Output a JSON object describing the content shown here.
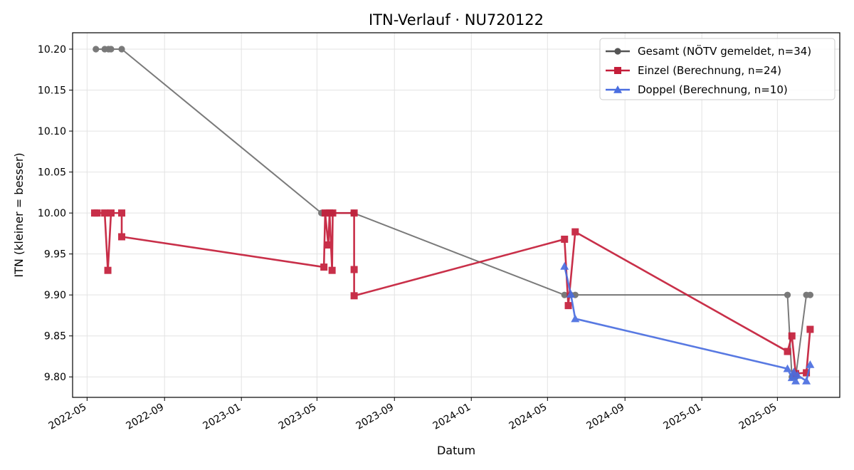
{
  "chart_data": {
    "type": "line",
    "title": "ITN-Verlauf · NU720122",
    "xlabel": "Datum",
    "ylabel": "ITN  (kleiner = besser)",
    "xlim": [
      "2022-04-08",
      "2025-08-08"
    ],
    "ylim": [
      9.775,
      10.22
    ],
    "x_ticks": [
      "2022-05-01",
      "2022-09-01",
      "2023-01-01",
      "2023-05-01",
      "2023-09-01",
      "2024-01-01",
      "2024-05-01",
      "2024-09-01",
      "2025-01-01",
      "2025-05-01"
    ],
    "x_tick_labels": [
      "2022-05",
      "2022-09",
      "2023-01",
      "2023-05",
      "2023-09",
      "2024-01",
      "2024-05",
      "2024-09",
      "2025-01",
      "2025-05"
    ],
    "y_ticks": [
      9.8,
      9.85,
      9.9,
      9.95,
      10.0,
      10.05,
      10.1,
      10.15,
      10.2
    ],
    "y_tick_labels": [
      "9.80",
      "9.85",
      "9.90",
      "9.95",
      "10.00",
      "10.05",
      "10.10",
      "10.15",
      "10.20"
    ],
    "grid": true,
    "legend_position": "top-right",
    "series": [
      {
        "name": "Gesamt (NÖTV gemeldet, n=34)",
        "color": "#555555",
        "marker": "circle",
        "points": [
          {
            "x": "2022-05-15",
            "y": 10.2
          },
          {
            "x": "2022-05-29",
            "y": 10.2
          },
          {
            "x": "2022-06-04",
            "y": 10.2
          },
          {
            "x": "2022-06-08",
            "y": 10.2
          },
          {
            "x": "2022-06-25",
            "y": 10.2
          },
          {
            "x": "2023-05-08",
            "y": 10.0
          },
          {
            "x": "2023-05-14",
            "y": 10.0
          },
          {
            "x": "2023-05-20",
            "y": 10.0
          },
          {
            "x": "2023-05-25",
            "y": 10.0
          },
          {
            "x": "2023-06-28",
            "y": 10.0
          },
          {
            "x": "2024-05-28",
            "y": 9.9
          },
          {
            "x": "2024-06-07",
            "y": 9.9
          },
          {
            "x": "2024-06-14",
            "y": 9.9
          },
          {
            "x": "2025-05-17",
            "y": 9.9
          },
          {
            "x": "2025-05-24",
            "y": 9.8
          },
          {
            "x": "2025-05-30",
            "y": 9.8
          },
          {
            "x": "2025-06-16",
            "y": 9.9
          },
          {
            "x": "2025-06-22",
            "y": 9.9
          }
        ]
      },
      {
        "name": "Einzel (Berechnung, n=24)",
        "color": "#c41e3a",
        "marker": "square",
        "points": [
          {
            "x": "2022-05-13",
            "y": 10.0
          },
          {
            "x": "2022-05-17",
            "y": 10.0
          },
          {
            "x": "2022-05-29",
            "y": 10.0
          },
          {
            "x": "2022-06-03",
            "y": 9.93
          },
          {
            "x": "2022-06-08",
            "y": 10.0
          },
          {
            "x": "2022-06-25",
            "y": 10.0
          },
          {
            "x": "2022-06-25",
            "y": 9.971
          },
          {
            "x": "2023-05-12",
            "y": 9.934
          },
          {
            "x": "2023-05-14",
            "y": 10.0
          },
          {
            "x": "2023-05-19",
            "y": 9.961
          },
          {
            "x": "2023-05-21",
            "y": 10.0
          },
          {
            "x": "2023-05-25",
            "y": 9.93
          },
          {
            "x": "2023-05-26",
            "y": 10.0
          },
          {
            "x": "2023-06-29",
            "y": 10.0
          },
          {
            "x": "2023-06-29",
            "y": 9.931
          },
          {
            "x": "2023-06-29",
            "y": 9.899
          },
          {
            "x": "2024-05-28",
            "y": 9.968
          },
          {
            "x": "2024-06-03",
            "y": 9.887
          },
          {
            "x": "2024-06-14",
            "y": 9.977
          },
          {
            "x": "2025-05-17",
            "y": 9.831
          },
          {
            "x": "2025-05-24",
            "y": 9.85
          },
          {
            "x": "2025-05-30",
            "y": 9.804
          },
          {
            "x": "2025-06-16",
            "y": 9.805
          },
          {
            "x": "2025-06-22",
            "y": 9.858
          }
        ]
      },
      {
        "name": "Doppel (Berechnung, n=10)",
        "color": "#4a6ee0",
        "marker": "triangle",
        "points": [
          {
            "x": "2024-05-28",
            "y": 9.935
          },
          {
            "x": "2024-06-07",
            "y": 9.901
          },
          {
            "x": "2024-06-14",
            "y": 9.871
          },
          {
            "x": "2025-05-17",
            "y": 9.81
          },
          {
            "x": "2025-05-24",
            "y": 9.799
          },
          {
            "x": "2025-05-27",
            "y": 9.806
          },
          {
            "x": "2025-05-30",
            "y": 9.795
          },
          {
            "x": "2025-06-02",
            "y": 9.802
          },
          {
            "x": "2025-06-16",
            "y": 9.795
          },
          {
            "x": "2025-06-22",
            "y": 9.815
          }
        ]
      }
    ]
  }
}
